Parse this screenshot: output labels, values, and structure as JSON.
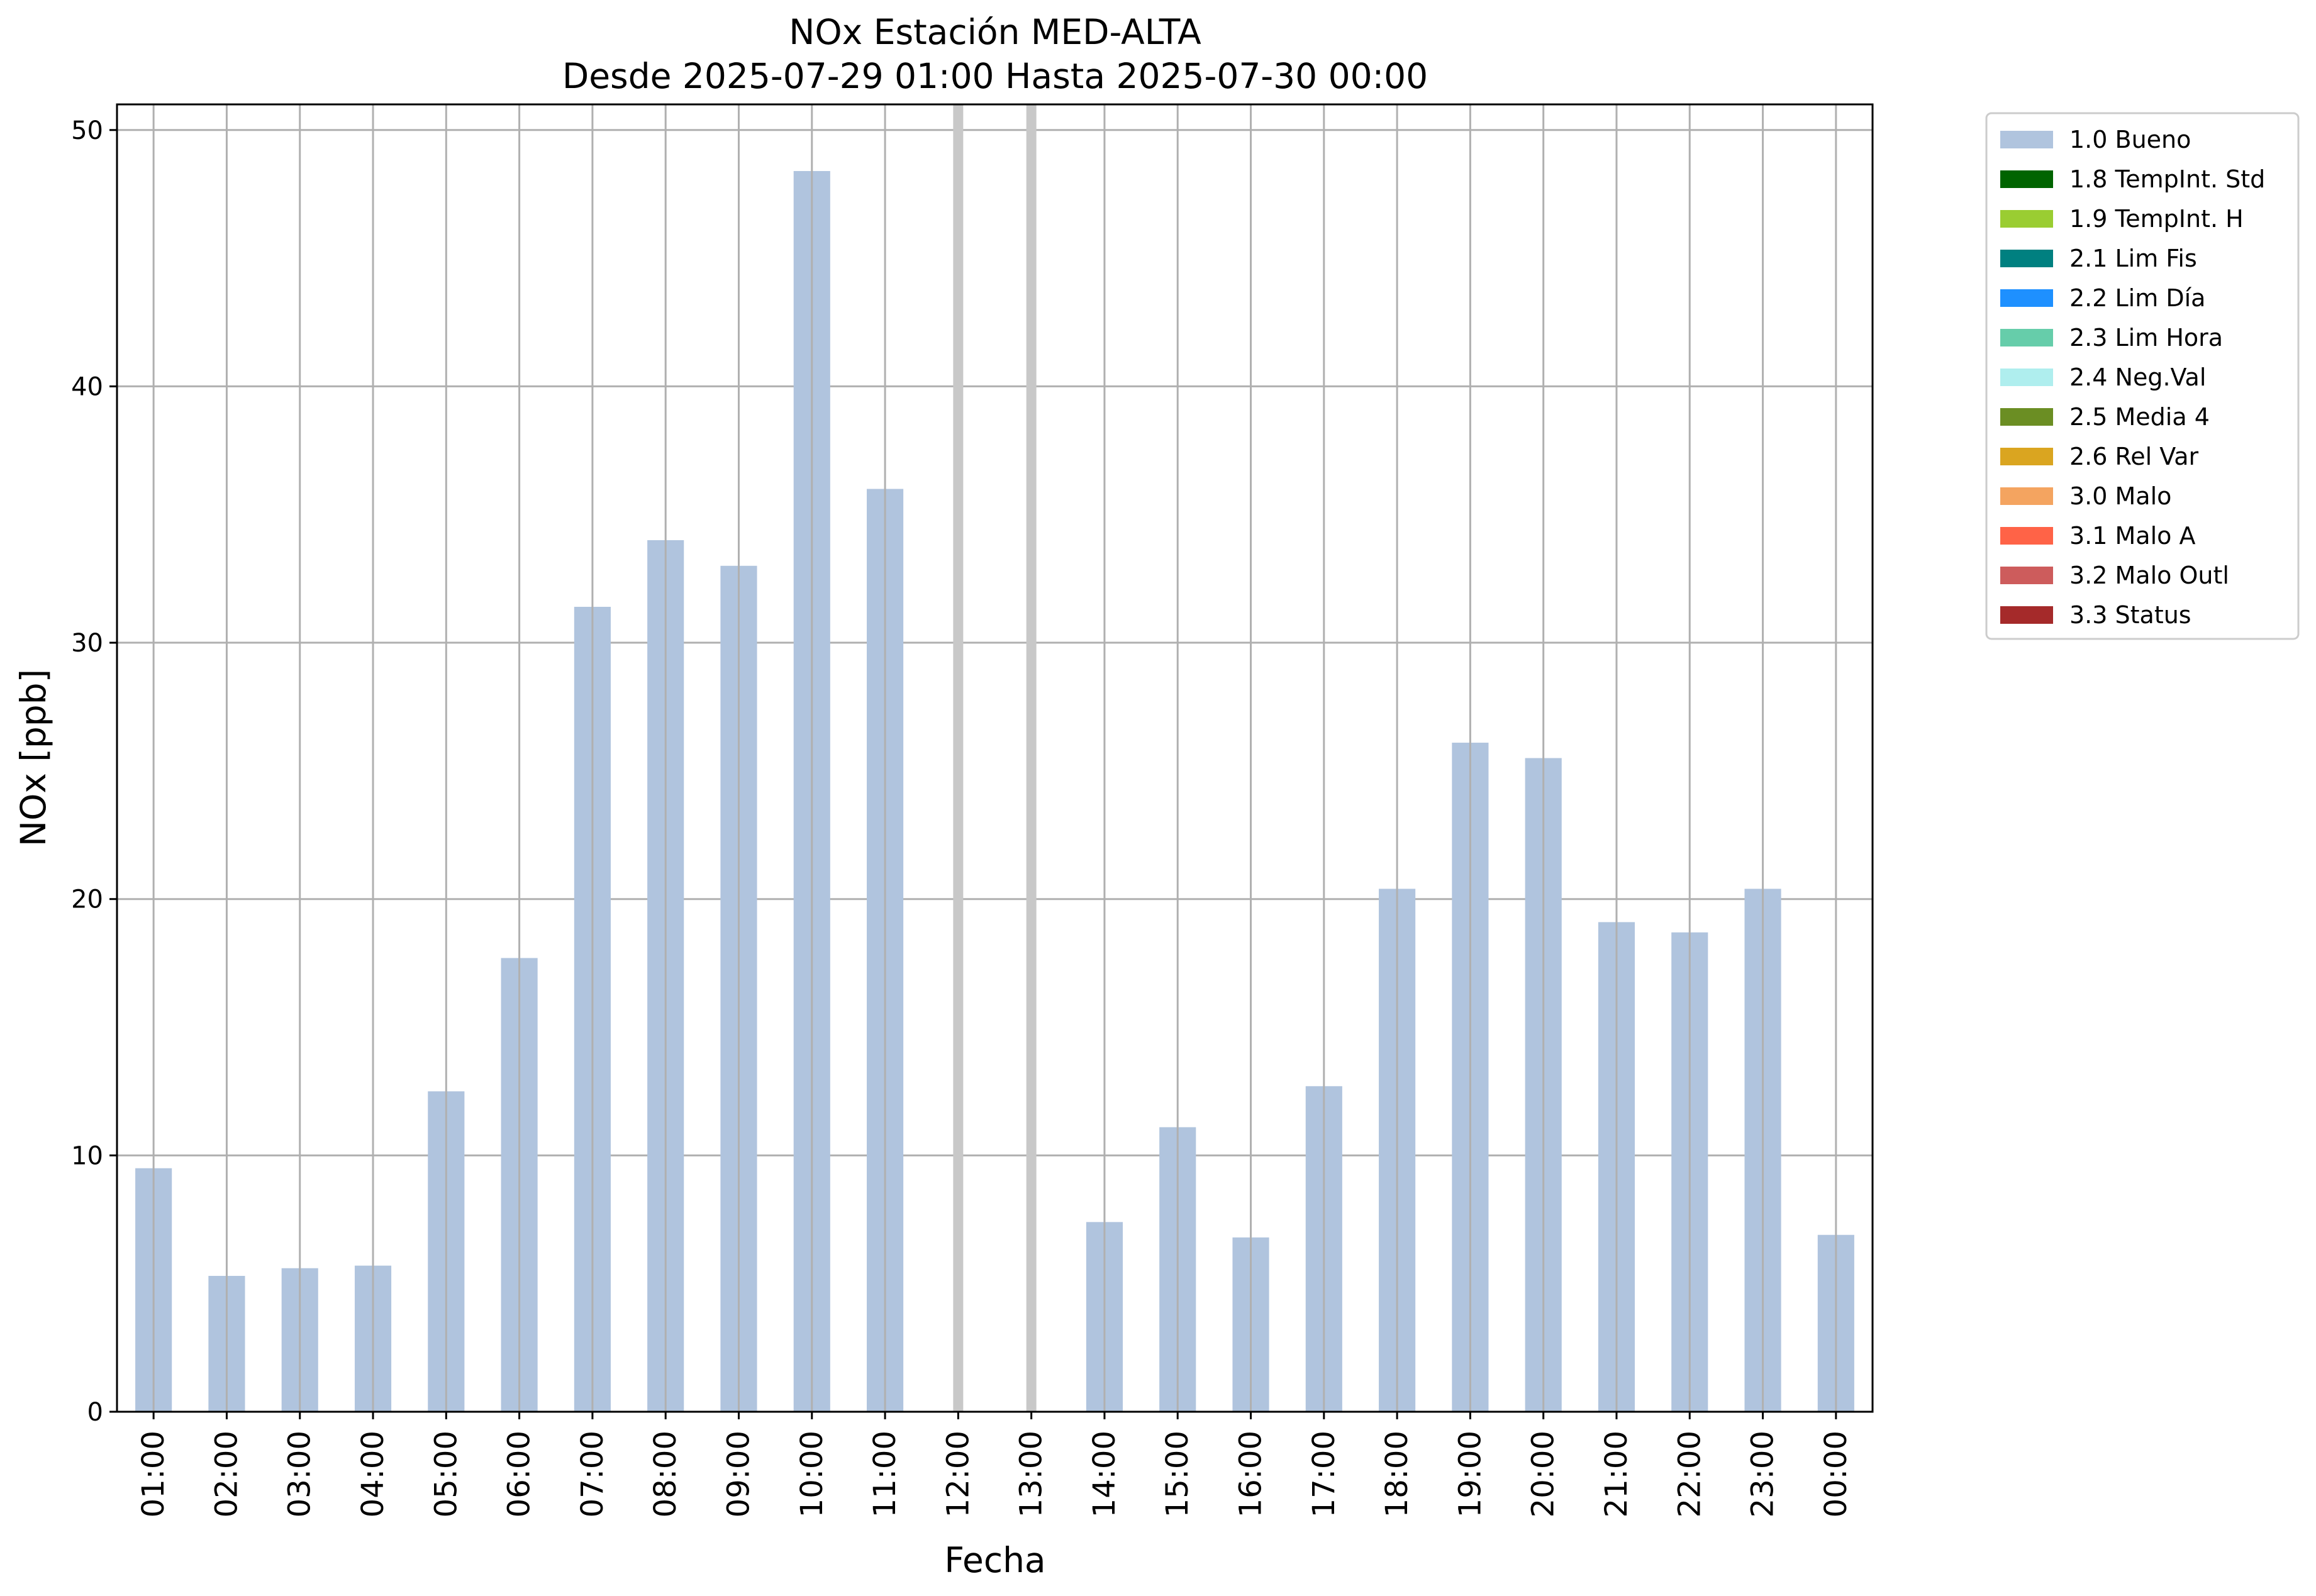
{
  "chart_data": {
    "type": "bar",
    "title": "NOx Estación MED-ALTA",
    "subtitle": "Desde 2025-07-29 01:00 Hasta 2025-07-30 00:00",
    "xlabel": "Fecha",
    "ylabel": "NOx [ppb]",
    "ylim": [
      0,
      51
    ],
    "yticks": [
      0,
      10,
      20,
      30,
      40,
      50
    ],
    "grid": true,
    "legend_position": "outside-top-right",
    "categories": [
      "01:00",
      "02:00",
      "03:00",
      "04:00",
      "05:00",
      "06:00",
      "07:00",
      "08:00",
      "09:00",
      "10:00",
      "11:00",
      "12:00",
      "13:00",
      "14:00",
      "15:00",
      "16:00",
      "17:00",
      "18:00",
      "19:00",
      "20:00",
      "21:00",
      "22:00",
      "23:00",
      "00:00"
    ],
    "series": [
      {
        "name": "1.0 Bueno",
        "color": "#b0c4de",
        "values": [
          9.5,
          5.3,
          5.6,
          5.7,
          12.5,
          17.7,
          31.4,
          34.0,
          33.0,
          48.4,
          36.0,
          null,
          null,
          7.4,
          11.1,
          6.8,
          12.7,
          20.4,
          26.1,
          25.5,
          19.1,
          18.7,
          20.4,
          6.9
        ]
      }
    ],
    "missing_markers": [
      "12:00",
      "13:00"
    ],
    "missing_marker_color": "#c8c8c8",
    "legend": [
      {
        "label": "1.0 Bueno",
        "color": "#b0c4de"
      },
      {
        "label": "1.8 TempInt. Std",
        "color": "#006400"
      },
      {
        "label": "1.9 TempInt. H",
        "color": "#9acd32"
      },
      {
        "label": "2.1 Lim Fis",
        "color": "#008080"
      },
      {
        "label": "2.2 Lim Día",
        "color": "#1e90ff"
      },
      {
        "label": "2.3 Lim Hora",
        "color": "#66cdaa"
      },
      {
        "label": "2.4 Neg.Val",
        "color": "#afeeee"
      },
      {
        "label": "2.5 Media 4",
        "color": "#6b8e23"
      },
      {
        "label": "2.6 Rel Var",
        "color": "#daa520"
      },
      {
        "label": "3.0 Malo",
        "color": "#f4a460"
      },
      {
        "label": "3.1 Malo A",
        "color": "#ff6347"
      },
      {
        "label": "3.2 Malo Outl",
        "color": "#cd5c5c"
      },
      {
        "label": "3.3 Status",
        "color": "#a52a2a"
      }
    ]
  }
}
